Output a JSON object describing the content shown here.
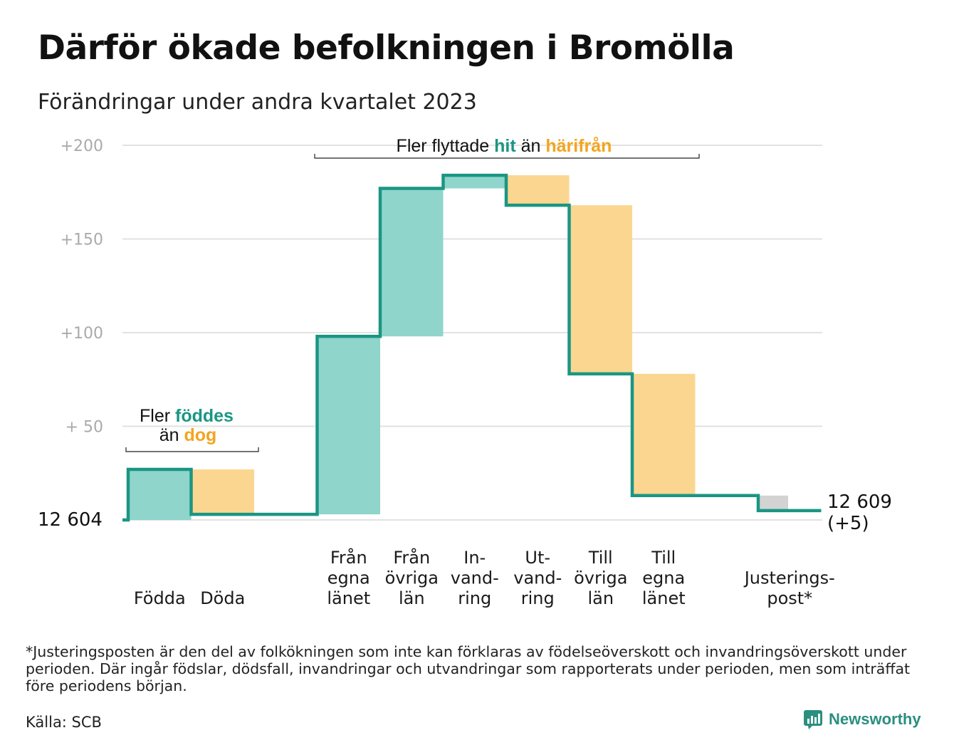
{
  "title": "Därför ökade befolkningen i Bromölla",
  "subtitle": "Förändringar under andra kvartalet 2023",
  "colors": {
    "positive": "#8fd5cb",
    "negative": "#fad690",
    "adjustment": "#d3d3d3",
    "line": "#1a9683",
    "teal_text": "#1a9683",
    "orange_text": "#f2a51f",
    "grid": "#e2e2e2",
    "tick_text": "#aaaaaa"
  },
  "chart_data": {
    "type": "waterfall",
    "baseline_label": "12  604",
    "end_label": [
      "12 609",
      "(+5)"
    ],
    "y_ticks": [
      {
        "value": 50,
        "label": "+  50"
      },
      {
        "value": 100,
        "label": "+100"
      },
      {
        "value": 150,
        "label": "+150"
      },
      {
        "value": 200,
        "label": "+200"
      }
    ],
    "ylim": [
      0,
      200
    ],
    "steps": [
      {
        "label": [
          "Födda"
        ],
        "value": 27,
        "kind": "positive"
      },
      {
        "label": [
          "Döda"
        ],
        "value": -24,
        "kind": "negative"
      },
      {
        "label": [],
        "value": 0,
        "kind": "gap"
      },
      {
        "label": [
          "Från",
          "egna",
          "länet"
        ],
        "value": 95,
        "kind": "positive"
      },
      {
        "label": [
          "Från",
          "övriga",
          "län"
        ],
        "value": 79,
        "kind": "positive"
      },
      {
        "label": [
          "In-",
          "vand-",
          "ring"
        ],
        "value": 7,
        "kind": "positive"
      },
      {
        "label": [
          "Ut-",
          "vand-",
          "ring"
        ],
        "value": -16,
        "kind": "negative"
      },
      {
        "label": [
          "Till",
          "övriga",
          "län"
        ],
        "value": -90,
        "kind": "negative"
      },
      {
        "label": [
          "Till",
          "egna",
          "länet"
        ],
        "value": -65,
        "kind": "negative"
      },
      {
        "label": [],
        "value": 0,
        "kind": "gap"
      },
      {
        "label": [
          "Justerings-",
          "post*"
        ],
        "value": -8,
        "kind": "adjustment"
      }
    ],
    "annotations": [
      {
        "id": "births",
        "parts": [
          {
            "text": "Fler ",
            "style": "normal"
          },
          {
            "text": "föddes",
            "style": "teal"
          },
          {
            "text": "än ",
            "style": "normal"
          },
          {
            "text": "dog",
            "style": "orange"
          }
        ]
      },
      {
        "id": "moves",
        "parts": [
          {
            "text": "Fler flyttade ",
            "style": "normal"
          },
          {
            "text": "hit",
            "style": "teal"
          },
          {
            "text": " än ",
            "style": "normal"
          },
          {
            "text": "härifrån",
            "style": "orange"
          }
        ]
      }
    ]
  },
  "footnote": "*Justeringsposten är den del av folkökningen som inte kan förklaras av födelseöverskott och invandringsöverskott under perioden. Där ingår födslar, dödsfall, invandringar och utvandringar som rapporterats under perioden, men som inträffat före periodens början.",
  "source": "Källa: SCB",
  "brand": {
    "name": "Newsworthy",
    "icon": "newsworthy-logo-icon"
  }
}
